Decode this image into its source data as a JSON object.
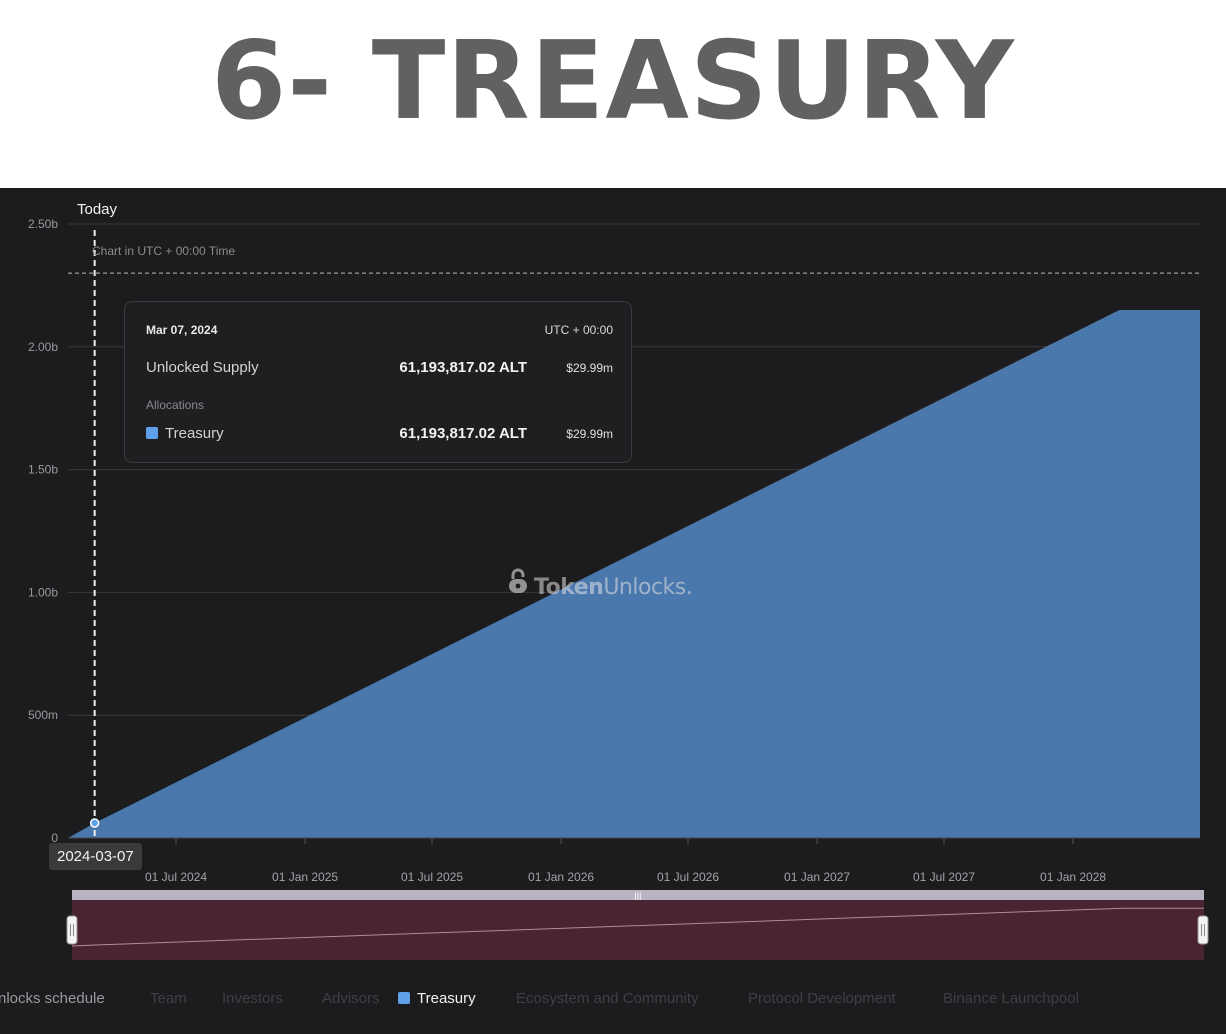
{
  "heading": "6- TREASURY",
  "today_label": "Today",
  "utc_note": "Chart in UTC + 00:00 Time",
  "date_badge": "2024-03-07",
  "watermark": {
    "token": "Token",
    "unlocks": "Unlocks."
  },
  "tooltip": {
    "date": "Mar 07, 2024",
    "timezone": "UTC + 00:00",
    "unlocked_label": "Unlocked Supply",
    "unlocked_value": "61,193,817.02 ALT",
    "unlocked_usd": "$29.99m",
    "section_label": "Allocations",
    "treasury_label": "Treasury",
    "treasury_value": "61,193,817.02 ALT",
    "treasury_usd": "$29.99m"
  },
  "legend": [
    "nlocks schedule",
    "Team",
    "Investors",
    "Advisors",
    "Treasury",
    "Ecosystem and Community",
    "Protocol Development",
    "Binance Launchpool"
  ],
  "chart_data": {
    "type": "area",
    "title": "",
    "xlabel": "",
    "ylabel": "",
    "y_ticks": [
      "0",
      "500m",
      "1.00b",
      "1.50b",
      "2.00b",
      "2.50b"
    ],
    "y_tick_values": [
      0,
      500000000,
      1000000000,
      1500000000,
      2000000000,
      2500000000
    ],
    "ylim": [
      0,
      2500000000
    ],
    "x_ticks": [
      "01 Jul 2024",
      "01 Jan 2025",
      "01 Jul 2025",
      "01 Jan 2026",
      "01 Jul 2026",
      "01 Jan 2027",
      "01 Jul 2027",
      "01 Jan 2028"
    ],
    "x_tick_dates": [
      "2024-07-01",
      "2025-01-01",
      "2025-07-01",
      "2026-01-01",
      "2026-07-01",
      "2027-01-01",
      "2027-07-01",
      "2028-01-01"
    ],
    "xlim": [
      "2024-01-29",
      "2028-06-30"
    ],
    "reference_line_y": 2300000000,
    "today_date": "2024-03-07",
    "grid": true,
    "legend_position": "bottom",
    "series": [
      {
        "name": "Treasury",
        "color": "#4a78ad",
        "points": [
          {
            "x": "2024-01-29",
            "y": 0
          },
          {
            "x": "2024-03-07",
            "y": 61193817.02
          },
          {
            "x": "2028-03-07",
            "y": 2150000000
          },
          {
            "x": "2028-06-30",
            "y": 2150000000
          }
        ]
      }
    ]
  }
}
